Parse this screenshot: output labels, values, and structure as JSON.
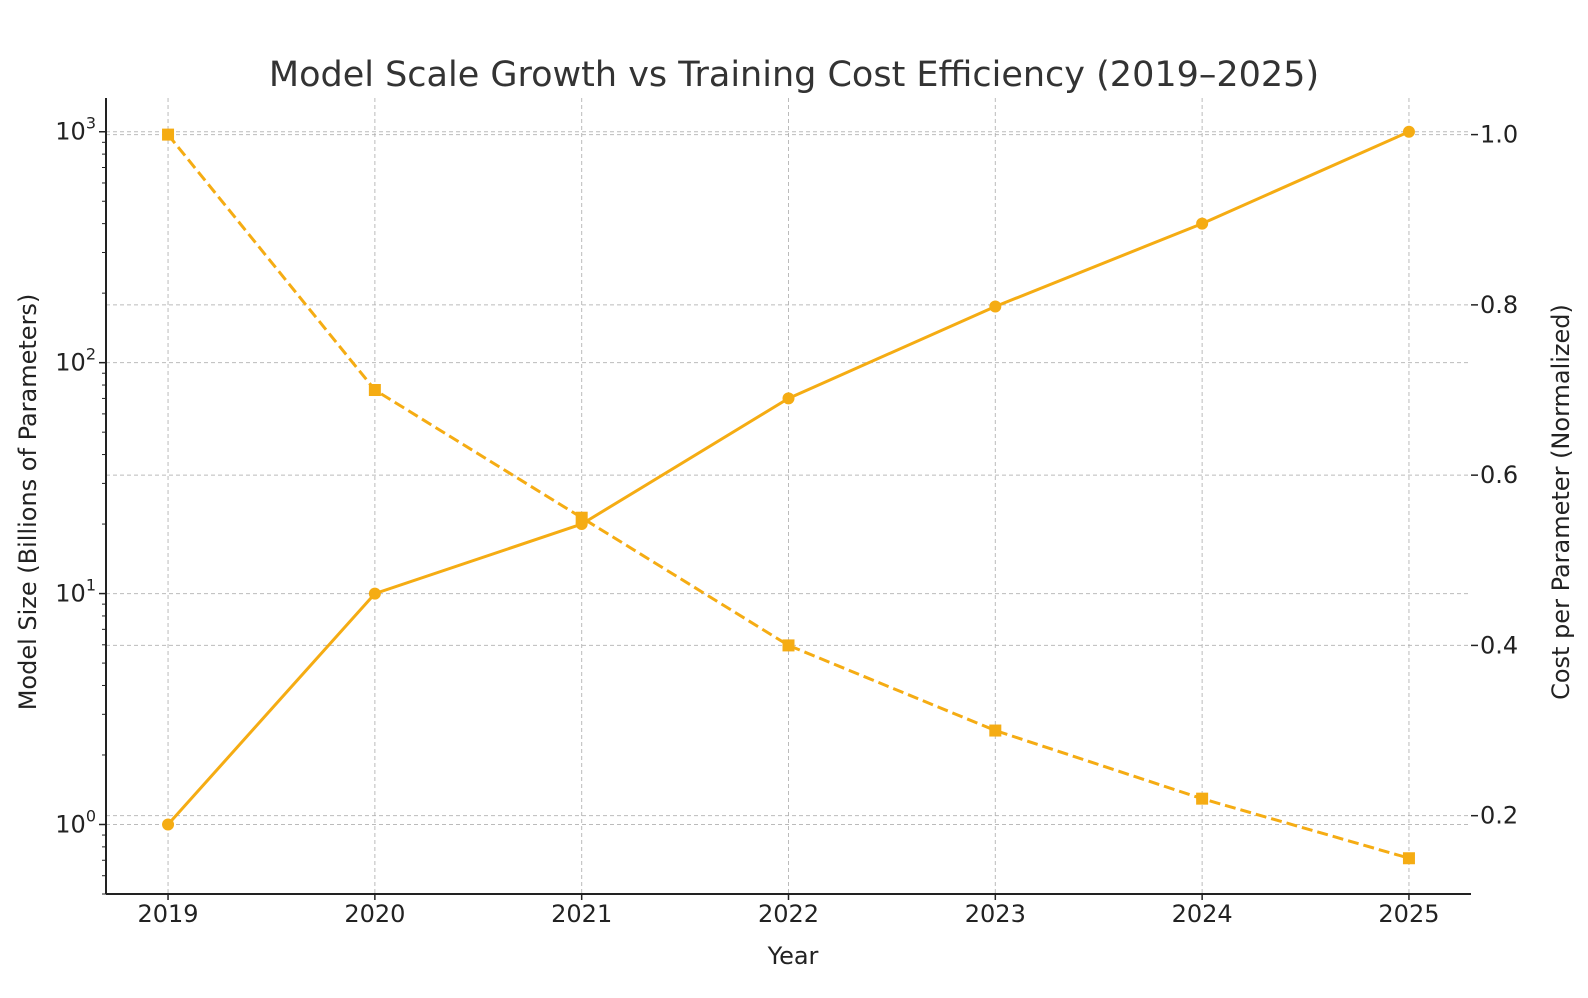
{
  "chart_data": {
    "type": "line",
    "title": "Model Scale Growth vs Training Cost Efficiency (2019–2025)",
    "xlabel": "Year",
    "ylabel_left": "Model Size (Billions of Parameters)",
    "ylabel_right": "Cost per Parameter (Normalized)",
    "x": [
      2019,
      2020,
      2021,
      2022,
      2023,
      2024,
      2025
    ],
    "x_tick_labels": [
      "2019",
      "2020",
      "2021",
      "2022",
      "2023",
      "2024",
      "2025"
    ],
    "left_axis": {
      "scale": "log",
      "ylim": [
        0.5,
        1400
      ],
      "ticks": [
        {
          "value": 1,
          "base": "10",
          "exp": "0"
        },
        {
          "value": 10,
          "base": "10",
          "exp": "1"
        },
        {
          "value": 100,
          "base": "10",
          "exp": "2"
        },
        {
          "value": 1000,
          "base": "10",
          "exp": "3"
        }
      ]
    },
    "right_axis": {
      "scale": "linear",
      "ylim": [
        0.108,
        1.043
      ],
      "ticks": [
        {
          "value": 0.2,
          "label": "0.2"
        },
        {
          "value": 0.4,
          "label": "0.4"
        },
        {
          "value": 0.6,
          "label": "0.6"
        },
        {
          "value": 0.8,
          "label": "0.8"
        },
        {
          "value": 1.0,
          "label": "1.0"
        }
      ]
    },
    "series": [
      {
        "axis": "left",
        "color": "#F5AC13",
        "linestyle": "solid",
        "marker": "circle",
        "values": [
          1,
          10,
          20,
          70,
          175,
          400,
          1000
        ]
      },
      {
        "axis": "right",
        "color": "#F5AC13",
        "linestyle": "dashed",
        "marker": "square",
        "values": [
          1.0,
          0.7,
          0.55,
          0.4,
          0.3,
          0.22,
          0.15
        ]
      }
    ],
    "grid": true
  }
}
